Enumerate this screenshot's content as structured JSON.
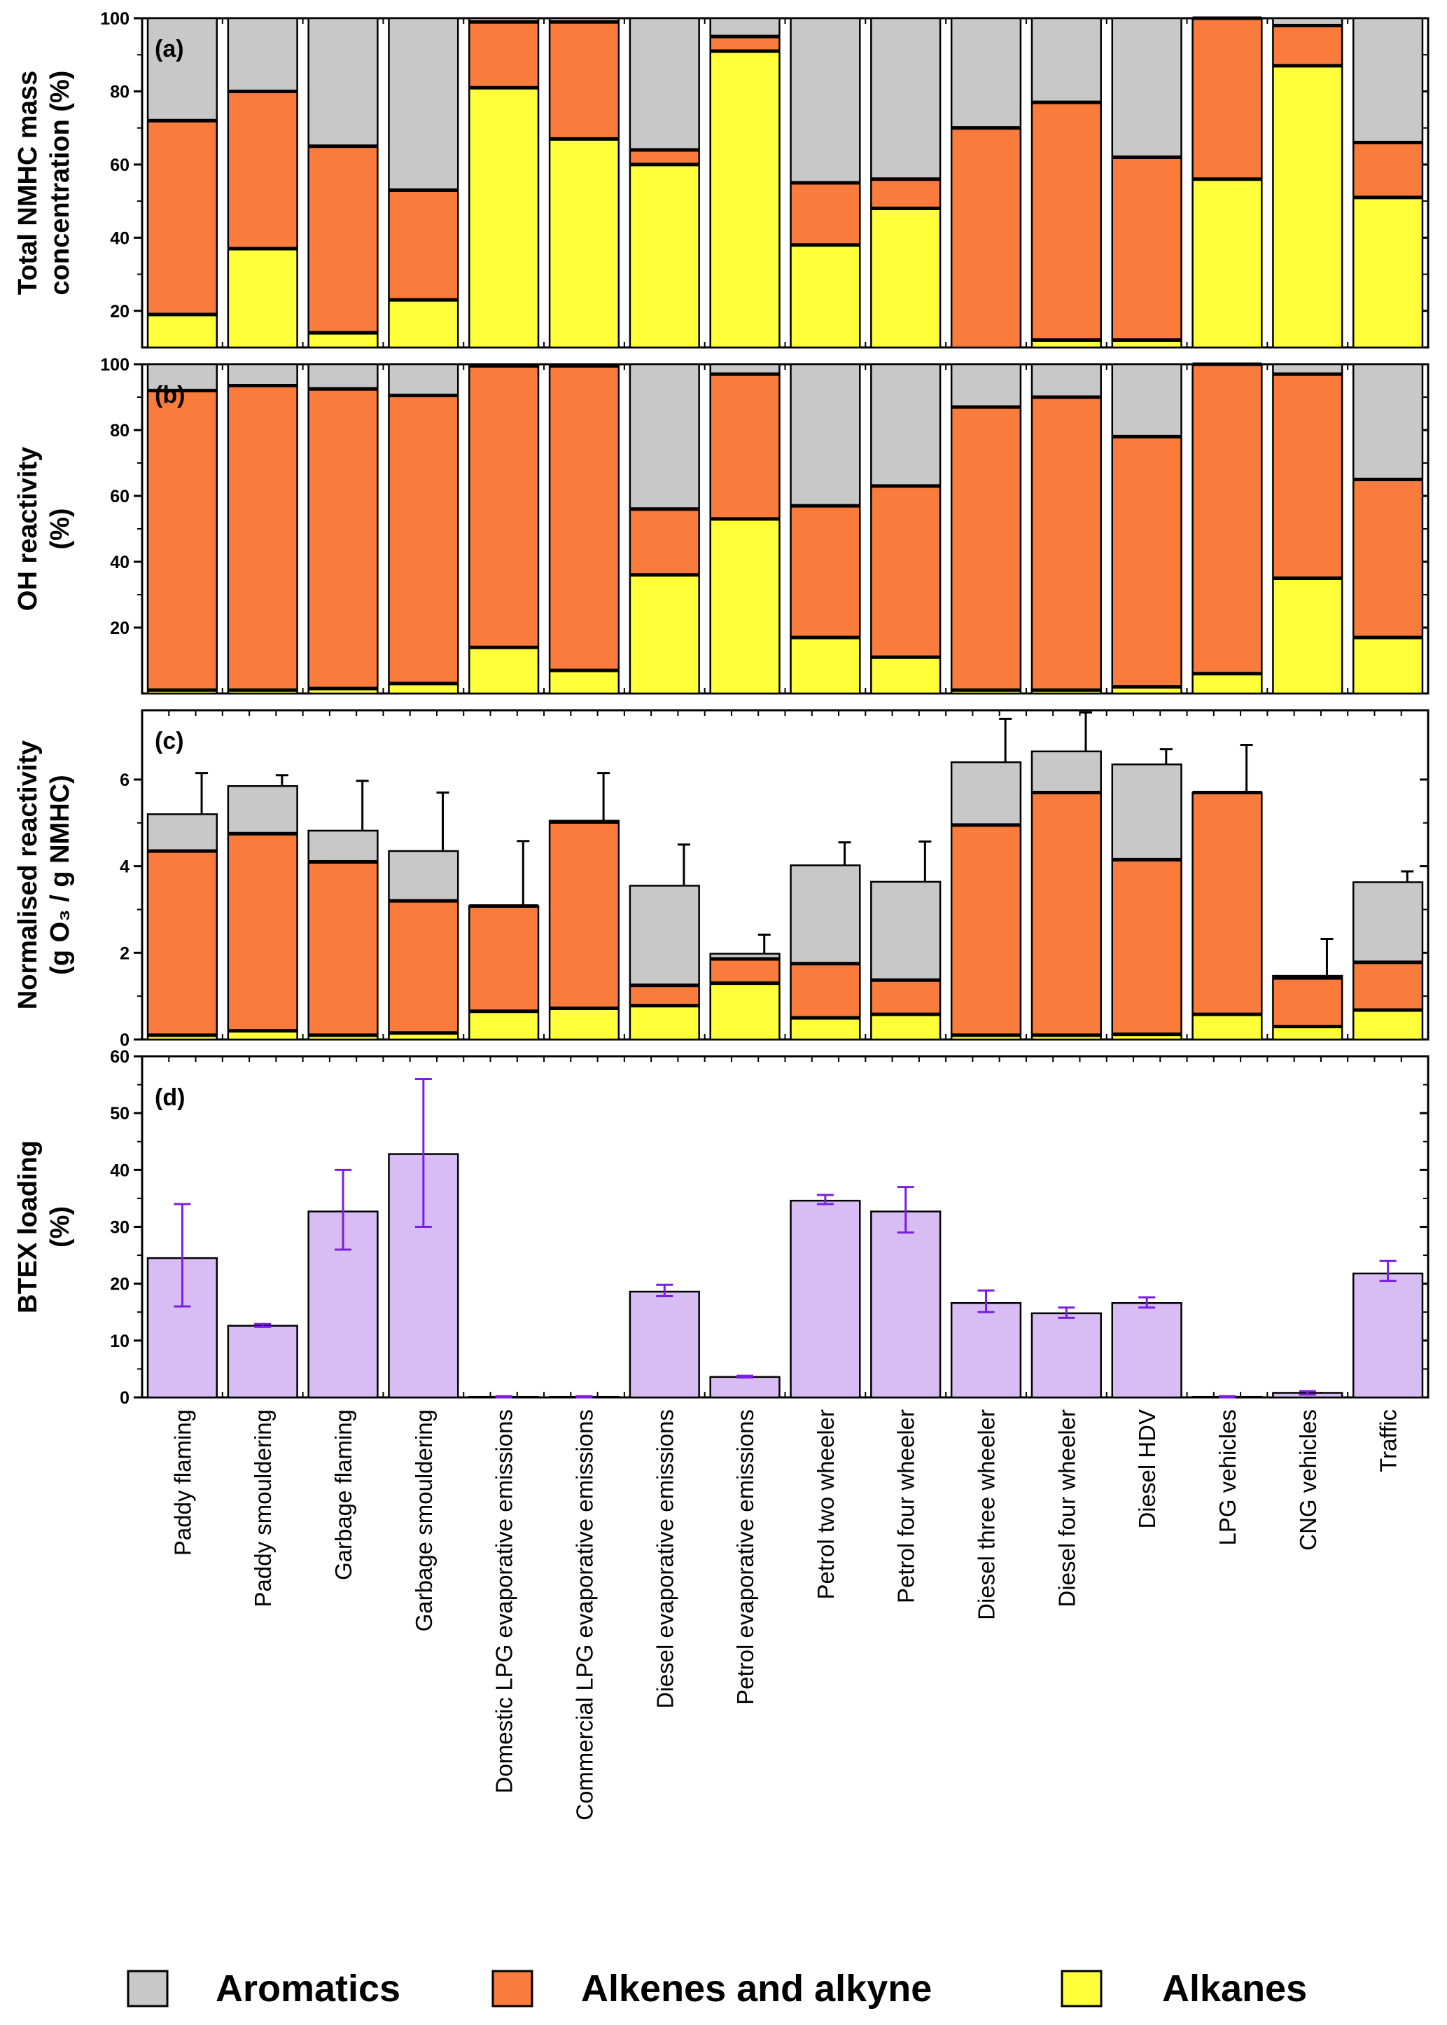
{
  "legend": {
    "aromatics": "Aromatics",
    "alkenes": "Alkenes and alkyne",
    "alkanes": "Alkanes"
  },
  "colors": {
    "aromatics": "#c8c8c8",
    "alkenes": "#f97c3c",
    "alkanes": "#ffff3a",
    "btex": "#d8bdf5",
    "btex_error": "#7a1fe0"
  },
  "chart_data": [
    {
      "type": "bar",
      "stacked": true,
      "panel_label": "(a)",
      "ylabel_lines": [
        "Total NMHC mass",
        "concentration (%)"
      ],
      "ylim": [
        10,
        100
      ],
      "yticks": [
        20,
        40,
        60,
        80,
        100
      ],
      "categories": [
        "Paddy flaming",
        "Paddy smouldering",
        "Garbage flaming",
        "Garbage smouldering",
        "Domestic LPG evaporative emissions",
        "Commercial LPG evaporative emissions",
        "Diesel evaporative emissions",
        "Petrol evaporative emissions",
        "Petrol two  wheeler",
        "Petrol four wheeler",
        "Diesel three wheeler",
        "Diesel four wheeler",
        "Diesel HDV",
        "LPG vehicles",
        "CNG vehicles",
        "Traffic"
      ],
      "series": [
        {
          "name": "Alkanes",
          "values": [
            19,
            37,
            14,
            23,
            81,
            67,
            60,
            91,
            38,
            48,
            0,
            12,
            12,
            56,
            87,
            51
          ]
        },
        {
          "name": "Alkenes and alkyne",
          "values": [
            53,
            43,
            51,
            30,
            18,
            32,
            4,
            4,
            17,
            8,
            70,
            65,
            50,
            44,
            11,
            15
          ]
        },
        {
          "name": "Aromatics",
          "values": [
            28,
            20,
            35,
            47,
            1,
            1,
            36,
            5,
            45,
            44,
            30,
            23,
            38,
            0,
            2,
            34
          ]
        }
      ]
    },
    {
      "type": "bar",
      "stacked": true,
      "panel_label": "(b)",
      "ylabel_lines": [
        "OH reactivity",
        "(%)"
      ],
      "ylim": [
        0,
        100
      ],
      "yticks": [
        20,
        40,
        60,
        80,
        100
      ],
      "categories": [
        "Paddy flaming",
        "Paddy smouldering",
        "Garbage flaming",
        "Garbage smouldering",
        "Domestic LPG evaporative emissions",
        "Commercial LPG evaporative emissions",
        "Diesel evaporative emissions",
        "Petrol evaporative emissions",
        "Petrol two  wheeler",
        "Petrol four wheeler",
        "Diesel three wheeler",
        "Diesel four wheeler",
        "Diesel HDV",
        "LPG vehicles",
        "CNG vehicles",
        "Traffic"
      ],
      "series": [
        {
          "name": "Alkanes",
          "values": [
            1,
            1,
            1.5,
            3,
            14,
            7,
            36,
            53,
            17,
            11,
            1,
            1,
            2,
            6,
            35,
            17
          ]
        },
        {
          "name": "Alkenes and alkyne",
          "values": [
            91,
            92.5,
            91,
            87.5,
            85.5,
            92.5,
            20,
            44,
            40,
            52,
            86,
            89,
            76,
            94,
            62,
            48
          ]
        },
        {
          "name": "Aromatics",
          "values": [
            8,
            6.5,
            7.5,
            9.5,
            0.5,
            0.5,
            44,
            3,
            43,
            37,
            13,
            10,
            22,
            0,
            3,
            35
          ]
        }
      ]
    },
    {
      "type": "bar",
      "stacked": true,
      "panel_label": "(c)",
      "ylabel_lines": [
        "Normalised reactivity",
        "(g O₃ / g NMHC)"
      ],
      "ylim": [
        0,
        7.6
      ],
      "yticks": [
        0,
        2,
        4,
        6
      ],
      "categories": [
        "Paddy flaming",
        "Paddy smouldering",
        "Garbage flaming",
        "Garbage smouldering",
        "Domestic LPG evaporative emissions",
        "Commercial LPG evaporative emissions",
        "Diesel evaporative emissions",
        "Petrol evaporative emissions",
        "Petrol two  wheeler",
        "Petrol four wheeler",
        "Diesel three wheeler",
        "Diesel four wheeler",
        "Diesel HDV",
        "LPG vehicles",
        "CNG vehicles",
        "Traffic"
      ],
      "series": [
        {
          "name": "Alkanes",
          "values": [
            0.1,
            0.2,
            0.1,
            0.15,
            0.65,
            0.72,
            0.78,
            1.3,
            0.5,
            0.58,
            0.1,
            0.1,
            0.12,
            0.58,
            0.3,
            0.68
          ]
        },
        {
          "name": "Alkenes and alkyne",
          "values": [
            4.25,
            4.55,
            4.0,
            3.05,
            2.43,
            4.3,
            0.47,
            0.56,
            1.25,
            0.79,
            4.85,
            5.6,
            4.03,
            5.12,
            1.12,
            1.1
          ]
        },
        {
          "name": "Aromatics",
          "values": [
            0.85,
            1.1,
            0.72,
            1.15,
            0,
            0.03,
            2.3,
            0.12,
            2.27,
            2.27,
            1.45,
            0.95,
            2.2,
            0,
            0.05,
            1.85
          ]
        }
      ],
      "error_upper": [
        6.15,
        6.1,
        5.97,
        5.7,
        4.58,
        6.15,
        4.5,
        2.42,
        4.55,
        4.57,
        7.4,
        7.55,
        6.7,
        6.8,
        2.32,
        3.88
      ]
    },
    {
      "type": "bar",
      "panel_label": "(d)",
      "ylabel_lines": [
        "BTEX loading",
        "(%)"
      ],
      "ylim": [
        0,
        60
      ],
      "yticks": [
        0,
        10,
        20,
        30,
        40,
        50,
        60
      ],
      "categories": [
        "Paddy flaming",
        "Paddy smouldering",
        "Garbage flaming",
        "Garbage smouldering",
        "Domestic LPG evaporative emissions",
        "Commercial LPG evaporative emissions",
        "Diesel evaporative emissions",
        "Petrol evaporative emissions",
        "Petrol two  wheeler",
        "Petrol four wheeler",
        "Diesel three wheeler",
        "Diesel four wheeler",
        "Diesel HDV",
        "LPG vehicles",
        "CNG vehicles",
        "Traffic"
      ],
      "values": [
        24.5,
        12.6,
        32.7,
        42.8,
        0.1,
        0.1,
        18.6,
        3.6,
        34.6,
        32.7,
        16.6,
        14.8,
        16.6,
        0.1,
        0.8,
        21.8
      ],
      "error_low": [
        16,
        12.4,
        26,
        30,
        0,
        0,
        17.8,
        3.5,
        34,
        29,
        15,
        14,
        15.8,
        0,
        0.5,
        20.5
      ],
      "error_high": [
        34,
        12.9,
        40,
        56,
        0.2,
        0.2,
        19.8,
        3.8,
        35.6,
        37,
        18.8,
        15.8,
        17.6,
        0.2,
        1.1,
        24
      ]
    }
  ]
}
